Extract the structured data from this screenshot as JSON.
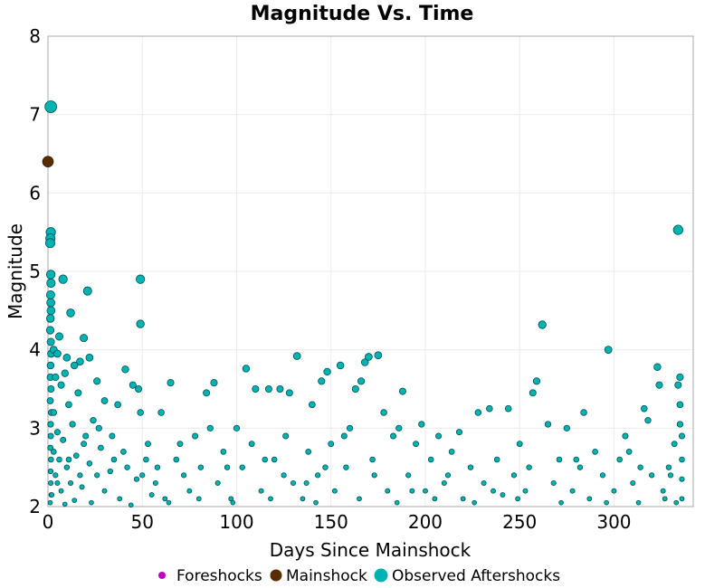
{
  "chart_data": {
    "type": "scatter",
    "title": "Magnitude Vs. Time",
    "xlabel": "Days Since Mainshock",
    "ylabel": "Magnitude",
    "xlim": [
      0,
      342
    ],
    "ylim": [
      2,
      8
    ],
    "xticks": [
      0,
      50,
      100,
      150,
      200,
      250,
      300
    ],
    "yticks": [
      2,
      3,
      4,
      5,
      6,
      7,
      8
    ],
    "grid": true,
    "legend_position": "bottom",
    "series": [
      {
        "name": "Foreshocks",
        "color": "#c000c0",
        "points": []
      },
      {
        "name": "Mainshock",
        "color": "#5a2d00",
        "points": [
          [
            0,
            6.4
          ]
        ]
      },
      {
        "name": "Observed Aftershocks",
        "color": "#00b3b3",
        "points": [
          [
            1.5,
            7.1
          ],
          [
            1.5,
            5.5
          ],
          [
            1.3,
            5.42
          ],
          [
            1.2,
            5.36
          ],
          [
            1.5,
            4.96
          ],
          [
            1.6,
            4.85
          ],
          [
            1.4,
            4.7
          ],
          [
            1.5,
            4.6
          ],
          [
            1.6,
            4.5
          ],
          [
            1.3,
            4.4
          ],
          [
            1.2,
            4.25
          ],
          [
            1.5,
            4.1
          ],
          [
            1.7,
            3.95
          ],
          [
            1.4,
            3.8
          ],
          [
            1.3,
            3.65
          ],
          [
            1.6,
            3.5
          ],
          [
            1.2,
            3.35
          ],
          [
            1.8,
            3.2
          ],
          [
            1.4,
            3.05
          ],
          [
            1.5,
            2.9
          ],
          [
            1.3,
            2.75
          ],
          [
            1.6,
            2.6
          ],
          [
            1.4,
            2.45
          ],
          [
            1.5,
            2.3
          ],
          [
            1.7,
            2.15
          ],
          [
            1.2,
            2.05
          ],
          [
            8,
            4.9
          ],
          [
            49,
            4.9
          ],
          [
            21,
            4.75
          ],
          [
            12,
            4.47
          ],
          [
            49,
            4.33
          ],
          [
            19,
            4.15
          ],
          [
            6,
            4.17
          ],
          [
            3,
            4.0
          ],
          [
            5,
            3.95
          ],
          [
            10,
            3.9
          ],
          [
            22,
            3.9
          ],
          [
            17,
            3.85
          ],
          [
            14,
            3.8
          ],
          [
            41,
            3.75
          ],
          [
            9,
            3.7
          ],
          [
            4,
            3.65
          ],
          [
            26,
            3.6
          ],
          [
            7,
            3.55
          ],
          [
            45,
            3.55
          ],
          [
            48,
            3.5
          ],
          [
            16,
            3.45
          ],
          [
            30,
            3.35
          ],
          [
            11,
            3.3
          ],
          [
            37,
            3.3
          ],
          [
            49,
            3.2
          ],
          [
            3,
            3.2
          ],
          [
            24,
            3.1
          ],
          [
            13,
            3.05
          ],
          [
            5,
            2.95
          ],
          [
            34,
            2.9
          ],
          [
            8,
            2.85
          ],
          [
            19,
            2.8
          ],
          [
            28,
            2.75
          ],
          [
            3,
            2.7
          ],
          [
            40,
            2.7
          ],
          [
            15,
            2.65
          ],
          [
            6,
            2.6
          ],
          [
            22,
            2.55
          ],
          [
            10,
            2.5
          ],
          [
            33,
            2.45
          ],
          [
            4,
            2.4
          ],
          [
            26,
            2.4
          ],
          [
            47,
            2.35
          ],
          [
            12,
            2.3
          ],
          [
            18,
            2.25
          ],
          [
            7,
            2.2
          ],
          [
            30,
            2.2
          ],
          [
            2,
            2.15
          ],
          [
            38,
            2.1
          ],
          [
            14,
            2.08
          ],
          [
            23,
            2.05
          ],
          [
            9,
            2.03
          ],
          [
            44,
            2.02
          ],
          [
            5,
            2.3
          ],
          [
            11,
            2.6
          ],
          [
            17,
            2.4
          ],
          [
            20,
            2.9
          ],
          [
            27,
            3.0
          ],
          [
            35,
            2.6
          ],
          [
            42,
            2.5
          ],
          [
            50,
            2.4
          ],
          [
            53,
            2.8
          ],
          [
            57,
            2.3
          ],
          [
            60,
            3.2
          ],
          [
            62,
            2.1
          ],
          [
            65,
            3.58
          ],
          [
            68,
            2.6
          ],
          [
            72,
            2.4
          ],
          [
            75,
            2.2
          ],
          [
            78,
            2.9
          ],
          [
            81,
            2.5
          ],
          [
            84,
            3.45
          ],
          [
            88,
            3.58
          ],
          [
            86,
            3.0
          ],
          [
            90,
            2.3
          ],
          [
            93,
            2.7
          ],
          [
            97,
            2.1
          ],
          [
            100,
            3.0
          ],
          [
            103,
            2.5
          ],
          [
            105,
            3.76
          ],
          [
            108,
            2.8
          ],
          [
            110,
            3.5
          ],
          [
            113,
            2.2
          ],
          [
            117,
            3.5
          ],
          [
            120,
            2.6
          ],
          [
            123,
            3.5
          ],
          [
            126,
            2.9
          ],
          [
            128,
            3.45
          ],
          [
            130,
            2.3
          ],
          [
            132,
            3.92
          ],
          [
            135,
            2.1
          ],
          [
            138,
            2.7
          ],
          [
            140,
            3.3
          ],
          [
            143,
            2.4
          ],
          [
            145,
            3.6
          ],
          [
            148,
            3.72
          ],
          [
            150,
            2.8
          ],
          [
            152,
            2.2
          ],
          [
            155,
            3.8
          ],
          [
            158,
            2.5
          ],
          [
            160,
            3.0
          ],
          [
            163,
            3.5
          ],
          [
            166,
            3.6
          ],
          [
            168,
            3.84
          ],
          [
            170,
            3.91
          ],
          [
            172,
            2.6
          ],
          [
            175,
            3.93
          ],
          [
            178,
            3.2
          ],
          [
            180,
            2.2
          ],
          [
            183,
            2.9
          ],
          [
            186,
            3.0
          ],
          [
            188,
            3.47
          ],
          [
            191,
            2.4
          ],
          [
            195,
            2.8
          ],
          [
            198,
            3.05
          ],
          [
            200,
            2.2
          ],
          [
            203,
            2.6
          ],
          [
            207,
            2.9
          ],
          [
            210,
            2.3
          ],
          [
            214,
            2.7
          ],
          [
            218,
            2.95
          ],
          [
            220,
            2.1
          ],
          [
            224,
            2.5
          ],
          [
            228,
            3.2
          ],
          [
            231,
            2.3
          ],
          [
            234,
            3.25
          ],
          [
            238,
            2.6
          ],
          [
            241,
            2.15
          ],
          [
            244,
            3.25
          ],
          [
            247,
            2.4
          ],
          [
            250,
            2.8
          ],
          [
            253,
            2.2
          ],
          [
            257,
            3.45
          ],
          [
            259,
            3.6
          ],
          [
            262,
            4.32
          ],
          [
            265,
            3.05
          ],
          [
            268,
            2.3
          ],
          [
            271,
            2.6
          ],
          [
            275,
            3.0
          ],
          [
            278,
            2.2
          ],
          [
            282,
            2.5
          ],
          [
            284,
            3.2
          ],
          [
            287,
            2.1
          ],
          [
            290,
            2.7
          ],
          [
            294,
            2.4
          ],
          [
            297,
            4.0
          ],
          [
            300,
            2.2
          ],
          [
            303,
            2.6
          ],
          [
            306,
            2.9
          ],
          [
            310,
            2.3
          ],
          [
            314,
            2.5
          ],
          [
            316,
            3.25
          ],
          [
            318,
            3.1
          ],
          [
            320,
            2.4
          ],
          [
            323,
            3.78
          ],
          [
            324,
            3.55
          ],
          [
            326,
            2.2
          ],
          [
            329,
            2.5
          ],
          [
            332,
            2.8
          ],
          [
            334,
            5.53
          ],
          [
            335,
            3.65
          ],
          [
            335,
            3.3
          ],
          [
            335,
            3.05
          ],
          [
            336,
            2.9
          ],
          [
            336,
            2.6
          ],
          [
            336,
            2.35
          ],
          [
            336,
            2.1
          ],
          [
            334,
            3.55
          ],
          [
            333,
            2.05
          ],
          [
            327,
            2.1
          ],
          [
            313,
            2.05
          ],
          [
            296,
            2.05
          ],
          [
            272,
            2.05
          ],
          [
            249,
            2.1
          ],
          [
            226,
            2.05
          ],
          [
            205,
            2.1
          ],
          [
            185,
            2.05
          ],
          [
            165,
            2.1
          ],
          [
            142,
            2.05
          ],
          [
            118,
            2.1
          ],
          [
            98,
            2.05
          ],
          [
            80,
            2.1
          ],
          [
            64,
            2.05
          ],
          [
            55,
            2.15
          ],
          [
            52,
            2.6
          ],
          [
            58,
            2.5
          ],
          [
            70,
            2.8
          ],
          [
            95,
            2.5
          ],
          [
            115,
            2.6
          ],
          [
            125,
            2.4
          ],
          [
            137,
            2.3
          ],
          [
            147,
            2.5
          ],
          [
            157,
            2.9
          ],
          [
            173,
            2.4
          ],
          [
            193,
            2.2
          ],
          [
            212,
            2.4
          ],
          [
            236,
            2.2
          ],
          [
            255,
            2.5
          ],
          [
            280,
            2.6
          ],
          [
            308,
            2.7
          ],
          [
            330,
            2.4
          ]
        ]
      }
    ]
  }
}
